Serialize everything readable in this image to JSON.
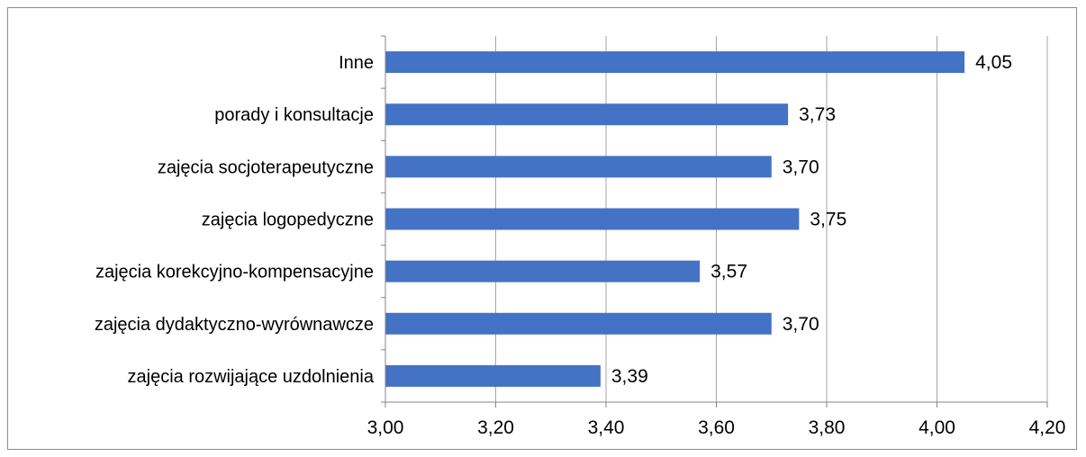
{
  "chart_data": {
    "type": "bar",
    "orientation": "horizontal",
    "categories": [
      "Inne",
      "porady i konsultacje",
      "zajęcia socjoterapeutyczne",
      "zajęcia logopedyczne",
      "zajęcia korekcyjno-kompensacyjne",
      "zajęcia dydaktyczno-wyrównawcze",
      "zajęcia rozwijające uzdolnienia"
    ],
    "values": [
      4.05,
      3.73,
      3.7,
      3.75,
      3.57,
      3.7,
      3.39
    ],
    "value_labels": [
      "4,05",
      "3,73",
      "3,70",
      "3,75",
      "3,57",
      "3,70",
      "3,39"
    ],
    "xlim": [
      3.0,
      4.2
    ],
    "x_ticks": [
      "3,00",
      "3,20",
      "3,40",
      "3,60",
      "3,80",
      "4,00",
      "4,20"
    ],
    "title": "",
    "xlabel": "",
    "ylabel": "",
    "grid": "vertical",
    "legend": "none",
    "bar_color": "#4472c4"
  }
}
